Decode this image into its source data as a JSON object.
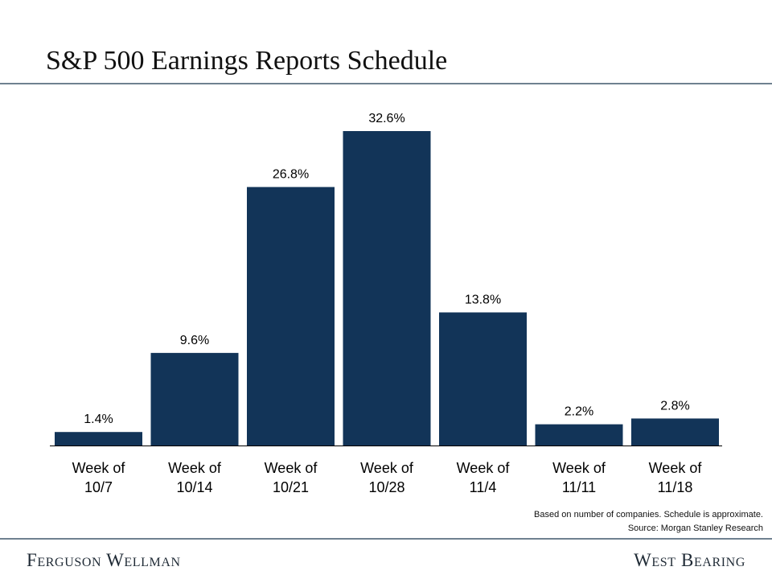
{
  "title": "S&P 500 Earnings Reports Schedule",
  "footnotes": {
    "line1": "Based on number of companies. Schedule is approximate.",
    "line2": "Source: Morgan Stanley Research"
  },
  "footer": {
    "left_brand": "Ferguson Wellman",
    "right_brand": "West Bearing"
  },
  "colors": {
    "bar": "#123458",
    "axis": "#000000",
    "rule": "#6f8190"
  },
  "chart_data": {
    "type": "bar",
    "title": "S&P 500 Earnings Reports Schedule",
    "categories": [
      [
        "Week of",
        "10/7"
      ],
      [
        "Week of",
        "10/14"
      ],
      [
        "Week of",
        "10/21"
      ],
      [
        "Week of",
        "10/28"
      ],
      [
        "Week of",
        "11/4"
      ],
      [
        "Week of",
        "11/11"
      ],
      [
        "Week of",
        "11/18"
      ]
    ],
    "values": [
      1.4,
      9.6,
      26.8,
      32.6,
      13.8,
      2.2,
      2.8
    ],
    "data_labels": [
      "1.4%",
      "9.6%",
      "26.8%",
      "32.6%",
      "13.8%",
      "2.2%",
      "2.8%"
    ],
    "ylim": [
      0,
      32.6
    ],
    "grid": false,
    "legend": "none"
  }
}
